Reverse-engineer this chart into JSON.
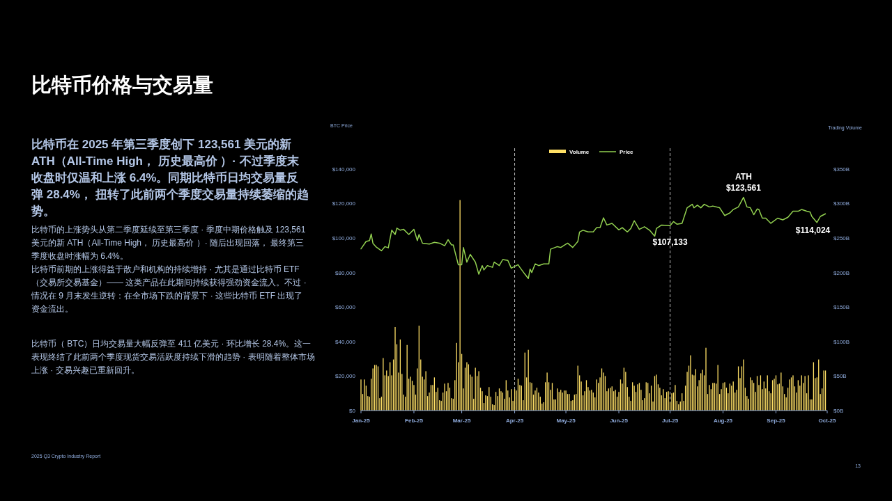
{
  "chart_data": {
    "type": "bar",
    "title": "比特币价格与交易量",
    "ylabel": "BTC Price",
    "y2label": "Trading Volume",
    "annotations": [
      "比特币在 2025 年第三季度创下 123,561 美元的新 ATH（All-Time High， 历史最高价 ）· 不过季度末收盘时仅温和上涨 6.4%。同期比特币日均交易量反弹 28.4%， 扭转了此前两个季度交易量持续萎缩的趋势。",
      "比特币的上涨势头从第二季度延续至第三季度 · 季度中期价格触及 123,561 美元的新 ATH（All-Time High， 历史最高价 ）· 随后出现回落， 最终第三季度收盘时涨幅为 6.4%。",
      "比特币前期的上涨得益于散户和机构的持续增持 · 尤其是通过比特币 ETF（交易所交易基金）—— 这类产品在此期间持续获得强劲资金流入。不过 · 情况在 9 月末发生逆转：在全市场下跌的背景下 · 这些比特币 ETF 出现了资金流出。",
      "比特币（ BTC）日均交易量大幅反弹至 411 亿美元 · 环比增长 28.4%。这一表现终结了此前两个季度现货交易活跃度持续下滑的趋势 · 表明随着整体市场上涨 · 交易兴趣已重新回升。",
      "2025 Q3 Crypto Industry Report",
      "13",
      {
        "text": "ATH\n$123,561",
        "x": "2025-08-13",
        "y": 123561
      },
      {
        "text": "$107,133",
        "x": "2025-07-01",
        "y": 107133
      },
      {
        "text": "$114,024",
        "x": "2025-09-30",
        "y": 114024
      }
    ],
    "xlim": [
      "2025-01-01",
      "2025-10-01"
    ],
    "xticks": [
      {
        "value": "2025-01-01",
        "label": "Jan-25"
      },
      {
        "value": "2025-02-01",
        "label": "Feb-25"
      },
      {
        "value": "2025-03-01",
        "label": "Mar-25"
      },
      {
        "value": "2025-04-01",
        "label": "Apr-25"
      },
      {
        "value": "2025-05-01",
        "label": "May-25"
      },
      {
        "value": "2025-06-01",
        "label": "Jun-25"
      },
      {
        "value": "2025-07-01",
        "label": "Jul-25"
      },
      {
        "value": "2025-08-01",
        "label": "Aug-25"
      },
      {
        "value": "2025-09-01",
        "label": "Sep-25"
      },
      {
        "value": "2025-10-01",
        "label": "Oct-25"
      }
    ],
    "ylim": [
      0,
      150000
    ],
    "yticks": [
      {
        "value": 0,
        "label": "$0"
      },
      {
        "value": 20000,
        "label": "$20,000"
      },
      {
        "value": 40000,
        "label": "$40,000"
      },
      {
        "value": 60000,
        "label": "$60,000"
      },
      {
        "value": 80000,
        "label": "$80,000"
      },
      {
        "value": 100000,
        "label": "$100,000"
      },
      {
        "value": 120000,
        "label": "$120,000"
      },
      {
        "value": 140000,
        "label": "$140,000"
      }
    ],
    "y2lim": [
      0,
      375
    ],
    "y2ticks": [
      {
        "value": 0,
        "label": "$0B"
      },
      {
        "value": 50,
        "label": "$50B"
      },
      {
        "value": 100,
        "label": "$100B"
      },
      {
        "value": 150,
        "label": "$150B"
      },
      {
        "value": 200,
        "label": "$200B"
      },
      {
        "value": 250,
        "label": "$250B"
      },
      {
        "value": 300,
        "label": "$300B"
      },
      {
        "value": 350,
        "label": "$350B"
      }
    ],
    "ref_lines": [
      {
        "axis": "x",
        "value": "2025-04-01",
        "color": "#bfbfbf",
        "line_style": "dashed"
      },
      {
        "axis": "x",
        "value": "2025-07-01",
        "color": "#bfbfbf",
        "line_style": "dashed"
      }
    ],
    "legend": "top",
    "grid": false,
    "x": [
      "2025-01-01",
      "2025-01-02",
      "2025-01-03",
      "2025-01-04",
      "2025-01-05",
      "2025-01-06",
      "2025-01-07",
      "2025-01-08",
      "2025-01-09",
      "2025-01-10",
      "2025-01-11",
      "2025-01-12",
      "2025-01-13",
      "2025-01-14",
      "2025-01-15",
      "2025-01-16",
      "2025-01-17",
      "2025-01-18",
      "2025-01-19",
      "2025-01-20",
      "2025-01-21",
      "2025-01-22",
      "2025-01-23",
      "2025-01-24",
      "2025-01-25",
      "2025-01-26",
      "2025-01-27",
      "2025-01-28",
      "2025-01-29",
      "2025-01-30",
      "2025-01-31",
      "2025-02-01",
      "2025-02-02",
      "2025-02-03",
      "2025-02-04",
      "2025-02-05",
      "2025-02-06",
      "2025-02-07",
      "2025-02-08",
      "2025-02-09",
      "2025-02-10",
      "2025-02-11",
      "2025-02-12",
      "2025-02-13",
      "2025-02-14",
      "2025-02-15",
      "2025-02-16",
      "2025-02-17",
      "2025-02-18",
      "2025-02-19",
      "2025-02-20",
      "2025-02-21",
      "2025-02-22",
      "2025-02-23",
      "2025-02-24",
      "2025-02-25",
      "2025-02-26",
      "2025-02-27",
      "2025-02-28",
      "2025-03-01",
      "2025-03-02",
      "2025-03-03",
      "2025-03-04",
      "2025-03-05",
      "2025-03-06",
      "2025-03-07",
      "2025-03-08",
      "2025-03-09",
      "2025-03-10",
      "2025-03-11",
      "2025-03-12",
      "2025-03-13",
      "2025-03-14",
      "2025-03-15",
      "2025-03-16",
      "2025-03-17",
      "2025-03-18",
      "2025-03-19",
      "2025-03-20",
      "2025-03-21",
      "2025-03-22",
      "2025-03-23",
      "2025-03-24",
      "2025-03-25",
      "2025-03-26",
      "2025-03-27",
      "2025-03-28",
      "2025-03-29",
      "2025-03-30",
      "2025-03-31",
      "2025-04-01",
      "2025-04-02",
      "2025-04-03",
      "2025-04-04",
      "2025-04-05",
      "2025-04-06",
      "2025-04-07",
      "2025-04-08",
      "2025-04-09",
      "2025-04-10",
      "2025-04-11",
      "2025-04-12",
      "2025-04-13",
      "2025-04-14",
      "2025-04-15",
      "2025-04-16",
      "2025-04-17",
      "2025-04-18",
      "2025-04-19",
      "2025-04-20",
      "2025-04-21",
      "2025-04-22",
      "2025-04-23",
      "2025-04-24",
      "2025-04-25",
      "2025-04-26",
      "2025-04-27",
      "2025-04-28",
      "2025-04-29",
      "2025-04-30",
      "2025-05-01",
      "2025-05-02",
      "2025-05-03",
      "2025-05-04",
      "2025-05-05",
      "2025-05-06",
      "2025-05-07",
      "2025-05-08",
      "2025-05-09",
      "2025-05-10",
      "2025-05-11",
      "2025-05-12",
      "2025-05-13",
      "2025-05-14",
      "2025-05-15",
      "2025-05-16",
      "2025-05-17",
      "2025-05-18",
      "2025-05-19",
      "2025-05-20",
      "2025-05-21",
      "2025-05-22",
      "2025-05-23",
      "2025-05-24",
      "2025-05-25",
      "2025-05-26",
      "2025-05-27",
      "2025-05-28",
      "2025-05-29",
      "2025-05-30",
      "2025-05-31",
      "2025-06-01",
      "2025-06-02",
      "2025-06-03",
      "2025-06-04",
      "2025-06-05",
      "2025-06-06",
      "2025-06-07",
      "2025-06-08",
      "2025-06-09",
      "2025-06-10",
      "2025-06-11",
      "2025-06-12",
      "2025-06-13",
      "2025-06-14",
      "2025-06-15",
      "2025-06-16",
      "2025-06-17",
      "2025-06-18",
      "2025-06-19",
      "2025-06-20",
      "2025-06-21",
      "2025-06-22",
      "2025-06-23",
      "2025-06-24",
      "2025-06-25",
      "2025-06-26",
      "2025-06-27",
      "2025-06-28",
      "2025-06-29",
      "2025-06-30",
      "2025-07-01",
      "2025-07-02",
      "2025-07-03",
      "2025-07-04",
      "2025-07-05",
      "2025-07-06",
      "2025-07-07",
      "2025-07-08",
      "2025-07-09",
      "2025-07-10",
      "2025-07-11",
      "2025-07-12",
      "2025-07-13",
      "2025-07-14",
      "2025-07-15",
      "2025-07-16",
      "2025-07-17",
      "2025-07-18",
      "2025-07-19",
      "2025-07-20",
      "2025-07-21",
      "2025-07-22",
      "2025-07-23",
      "2025-07-24",
      "2025-07-25",
      "2025-07-26",
      "2025-07-27",
      "2025-07-28",
      "2025-07-29",
      "2025-07-30",
      "2025-07-31",
      "2025-08-01",
      "2025-08-02",
      "2025-08-03",
      "2025-08-04",
      "2025-08-05",
      "2025-08-06",
      "2025-08-07",
      "2025-08-08",
      "2025-08-09",
      "2025-08-10",
      "2025-08-11",
      "2025-08-12",
      "2025-08-13",
      "2025-08-14",
      "2025-08-15",
      "2025-08-16",
      "2025-08-17",
      "2025-08-18",
      "2025-08-19",
      "2025-08-20",
      "2025-08-21",
      "2025-08-22",
      "2025-08-23",
      "2025-08-24",
      "2025-08-25",
      "2025-08-26",
      "2025-08-27",
      "2025-08-28",
      "2025-08-29",
      "2025-08-30",
      "2025-08-31",
      "2025-09-01",
      "2025-09-02",
      "2025-09-03",
      "2025-09-04",
      "2025-09-05",
      "2025-09-06",
      "2025-09-07",
      "2025-09-08",
      "2025-09-09",
      "2025-09-10",
      "2025-09-11",
      "2025-09-12",
      "2025-09-13",
      "2025-09-14",
      "2025-09-15",
      "2025-09-16",
      "2025-09-17",
      "2025-09-18",
      "2025-09-19",
      "2025-09-20",
      "2025-09-21",
      "2025-09-22",
      "2025-09-23",
      "2025-09-24",
      "2025-09-25",
      "2025-09-26",
      "2025-09-27",
      "2025-09-28",
      "2025-09-29",
      "2025-09-30"
    ],
    "series": [
      {
        "name": "Volume",
        "axis": "y2",
        "color": "#ffe066",
        "values": [
          45,
          24,
          45,
          36,
          21,
          20,
          46,
          61,
          66,
          66,
          64,
          18,
          20,
          76,
          51,
          58,
          50,
          70,
          51,
          74,
          121,
          96,
          55,
          103,
          53,
          23,
          20,
          95,
          46,
          49,
          43,
          37,
          23,
          61,
          123,
          74,
          49,
          45,
          57,
          21,
          26,
          37,
          37,
          48,
          27,
          33,
          15,
          14,
          26,
          39,
          28,
          40,
          33,
          18,
          17,
          44,
          98,
          70,
          305,
          82,
          32,
          62,
          70,
          67,
          52,
          49,
          17,
          62,
          50,
          57,
          33,
          28,
          11,
          22,
          21,
          34,
          20,
          9,
          8,
          27,
          21,
          32,
          28,
          26,
          17,
          44,
          29,
          19,
          31,
          14,
          31,
          29,
          46,
          37,
          36,
          15,
          84,
          48,
          88,
          41,
          40,
          23,
          29,
          33,
          26,
          20,
          10,
          12,
          41,
          55,
          41,
          30,
          40,
          16,
          16,
          32,
          27,
          30,
          26,
          29,
          29,
          24,
          24,
          14,
          15,
          23,
          24,
          65,
          51,
          42,
          22,
          28,
          44,
          34,
          29,
          30,
          26,
          19,
          45,
          40,
          48,
          61,
          55,
          50,
          28,
          32,
          33,
          35,
          28,
          30,
          20,
          27,
          45,
          39,
          62,
          56,
          34,
          20,
          14,
          41,
          36,
          27,
          38,
          40,
          30,
          15,
          18,
          41,
          40,
          25,
          36,
          13,
          50,
          52,
          38,
          33,
          22,
          31,
          18,
          27,
          28,
          12,
          25,
          26,
          37,
          14,
          9,
          13,
          25,
          14,
          36,
          56,
          65,
          80,
          52,
          51,
          60,
          35,
          44,
          54,
          59,
          51,
          91,
          24,
          37,
          31,
          40,
          40,
          39,
          66,
          24,
          31,
          40,
          41,
          33,
          25,
          39,
          36,
          42,
          26,
          30,
          64,
          47,
          64,
          74,
          33,
          21,
          17,
          48,
          44,
          40,
          27,
          50,
          37,
          51,
          31,
          42,
          32,
          51,
          28,
          25,
          44,
          46,
          51,
          38,
          39,
          55,
          35,
          24,
          19,
          33,
          45,
          48,
          51,
          35,
          26,
          44,
          36,
          51,
          40,
          50,
          25,
          51,
          16,
          16,
          70,
          47,
          48,
          74,
          24,
          32,
          58,
          58
        ]
      },
      {
        "name": "Price",
        "type": "line",
        "color": "#92d050",
        "x": [
          "2025-01-01",
          "2025-01-04",
          "2025-01-06",
          "2025-01-07",
          "2025-01-08",
          "2025-01-10",
          "2025-01-13",
          "2025-01-15",
          "2025-01-17",
          "2025-01-19",
          "2025-01-21",
          "2025-01-22",
          "2025-01-24",
          "2025-01-26",
          "2025-01-29",
          "2025-02-01",
          "2025-02-03",
          "2025-02-04",
          "2025-02-06",
          "2025-02-10",
          "2025-02-13",
          "2025-02-16",
          "2025-02-19",
          "2025-02-21",
          "2025-02-23",
          "2025-02-24",
          "2025-02-27",
          "2025-03-01",
          "2025-03-02",
          "2025-03-04",
          "2025-03-06",
          "2025-03-09",
          "2025-03-11",
          "2025-03-13",
          "2025-03-14",
          "2025-03-16",
          "2025-03-19",
          "2025-03-20",
          "2025-03-23",
          "2025-03-25",
          "2025-03-28",
          "2025-03-30",
          "2025-04-03",
          "2025-04-04",
          "2025-04-07",
          "2025-04-09",
          "2025-04-10",
          "2025-04-11",
          "2025-04-13",
          "2025-04-15",
          "2025-04-18",
          "2025-04-21",
          "2025-04-22",
          "2025-04-26",
          "2025-04-28",
          "2025-05-02",
          "2025-05-05",
          "2025-05-08",
          "2025-05-09",
          "2025-05-11",
          "2025-05-14",
          "2025-05-17",
          "2025-05-19",
          "2025-05-21",
          "2025-05-23",
          "2025-05-25",
          "2025-05-28",
          "2025-06-01",
          "2025-06-03",
          "2025-06-06",
          "2025-06-08",
          "2025-06-10",
          "2025-06-13",
          "2025-06-16",
          "2025-06-19",
          "2025-06-22",
          "2025-06-23",
          "2025-06-26",
          "2025-07-01",
          "2025-07-03",
          "2025-07-05",
          "2025-07-08",
          "2025-07-11",
          "2025-07-14",
          "2025-07-15",
          "2025-07-17",
          "2025-07-19",
          "2025-07-21",
          "2025-07-24",
          "2025-07-26",
          "2025-07-30",
          "2025-08-02",
          "2025-08-05",
          "2025-08-07",
          "2025-08-10",
          "2025-08-13",
          "2025-08-15",
          "2025-08-17",
          "2025-08-19",
          "2025-08-21",
          "2025-08-22",
          "2025-08-24",
          "2025-08-26",
          "2025-08-29",
          "2025-09-02",
          "2025-09-05",
          "2025-09-08",
          "2025-09-11",
          "2025-09-14",
          "2025-09-16",
          "2025-09-19",
          "2025-09-21",
          "2025-09-22",
          "2025-09-25",
          "2025-09-27",
          "2025-09-30"
        ],
        "values": [
          93700,
          98000,
          98500,
          102300,
          96900,
          94700,
          92600,
          95000,
          94300,
          104500,
          102000,
          105700,
          104500,
          105000,
          102000,
          105000,
          98500,
          102000,
          97000,
          96500,
          97500,
          97000,
          95500,
          99000,
          96000,
          96000,
          84500,
          84500,
          94500,
          86000,
          90500,
          86000,
          79000,
          84000,
          81500,
          84000,
          83000,
          86000,
          84000,
          87500,
          87000,
          82500,
          84500,
          83000,
          79000,
          76500,
          82000,
          80000,
          85000,
          84000,
          85000,
          85000,
          93500,
          95000,
          94500,
          97000,
          94500,
          98000,
          103500,
          104500,
          103500,
          103500,
          106000,
          106000,
          111700,
          107500,
          108500,
          104700,
          106000,
          103500,
          105500,
          110000,
          105000,
          106500,
          104500,
          101000,
          105500,
          107500,
          107133,
          109500,
          108000,
          108500,
          117500,
          119500,
          117500,
          119000,
          117500,
          119500,
          118000,
          118500,
          117500,
          113000,
          114500,
          116500,
          118000,
          123561,
          118000,
          117500,
          113500,
          116800,
          116500,
          111500,
          111500,
          108500,
          111500,
          110500,
          112000,
          115500,
          115500,
          116500,
          115500,
          115000,
          112500,
          109000,
          112500,
          114024
        ]
      }
    ]
  }
}
